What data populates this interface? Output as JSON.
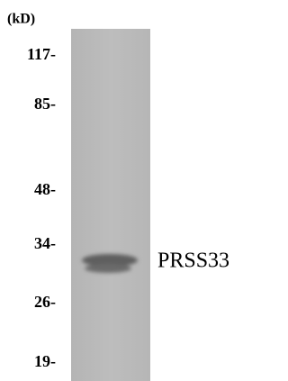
{
  "unit_label": "(kD)",
  "markers": [
    "117-",
    "85-",
    "48-",
    "34-",
    "26-",
    "19-"
  ],
  "band_label": "PRSS33"
}
